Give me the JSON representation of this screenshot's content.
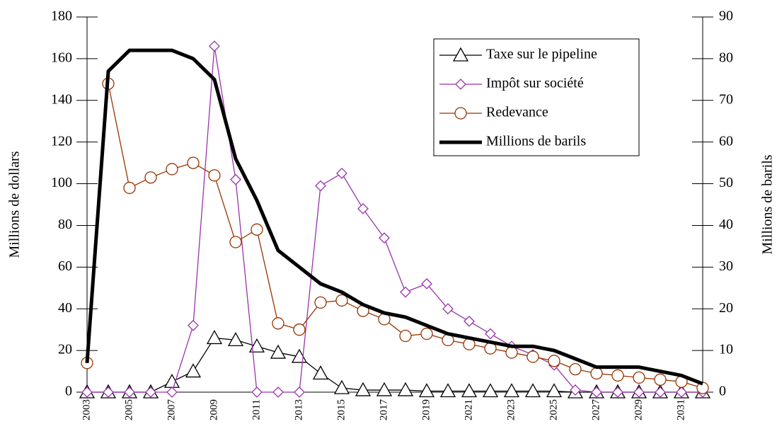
{
  "chart_data": {
    "type": "line",
    "categories": [
      "2003",
      null,
      "2005",
      null,
      "2007",
      null,
      "2009",
      null,
      "2011",
      null,
      "2013",
      null,
      "2015",
      null,
      "2017",
      null,
      "2019",
      null,
      "2021",
      null,
      "2023",
      null,
      "2025",
      null,
      "2027",
      null,
      "2029",
      null,
      "2031",
      null
    ],
    "ylabel": "Millions de dollars",
    "y2label": "Millions de barils",
    "ylim": [
      0,
      180
    ],
    "yticks": [
      0,
      20,
      40,
      60,
      80,
      100,
      120,
      140,
      160,
      180
    ],
    "y2lim": [
      0,
      90
    ],
    "y2ticks": [
      0,
      10,
      20,
      30,
      40,
      50,
      60,
      70,
      80,
      90
    ],
    "legend": "upper right",
    "series": [
      {
        "name": "Taxe sur le pipeline",
        "color": "#000000",
        "marker": "triangle",
        "values": [
          0,
          0,
          0,
          0,
          5,
          10,
          26,
          25,
          22,
          19,
          17,
          9,
          2,
          1,
          1,
          1,
          0.5,
          0.5,
          0.5,
          0.5,
          0.5,
          0.5,
          0.5,
          0,
          0,
          0,
          0,
          0,
          0,
          0
        ]
      },
      {
        "name": "Impôt sur société",
        "color": "#9933aa",
        "marker": "diamond",
        "values": [
          0,
          0,
          0,
          0,
          0,
          32,
          166,
          102,
          0,
          0,
          0,
          99,
          105,
          88,
          74,
          48,
          52,
          40,
          34,
          28,
          22,
          18,
          13,
          1,
          0,
          0,
          0,
          0,
          0,
          0
        ]
      },
      {
        "name": "Redevance",
        "color": "#993300",
        "marker": "circle",
        "values": [
          14,
          148,
          98,
          103,
          107,
          110,
          104,
          72,
          78,
          33,
          30,
          43,
          44,
          39,
          35,
          27,
          28,
          25,
          23,
          21,
          19,
          17,
          15,
          11,
          9,
          8,
          7,
          6,
          5,
          2
        ]
      },
      {
        "name": "Millions de barils",
        "color": "#000000",
        "marker": "none",
        "axis": "y2",
        "values": [
          7,
          77,
          82,
          82,
          82,
          80,
          75,
          56,
          46,
          34,
          30,
          26,
          24,
          21,
          19,
          18,
          16,
          14,
          13,
          12,
          11,
          11,
          10,
          8,
          6,
          6,
          6,
          5,
          4,
          2
        ]
      }
    ]
  }
}
